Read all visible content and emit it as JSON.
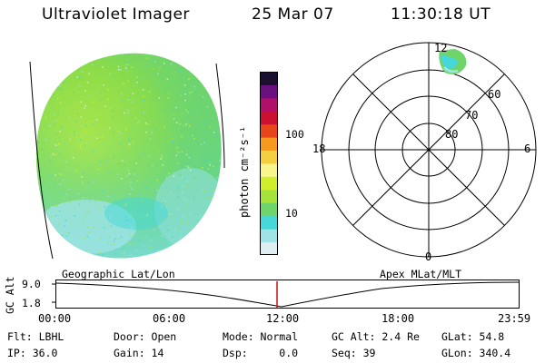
{
  "header": {
    "instrument": "Ultraviolet Imager",
    "date": "25 Mar 07",
    "time": "11:30:18 UT"
  },
  "colorbar": {
    "unit_label": "photon cm⁻²s⁻¹",
    "tick_100": "100",
    "tick_10": "10",
    "colors": [
      "#dfeef0",
      "#9fe3e6",
      "#45d7d9",
      "#6fd46a",
      "#a5e33b",
      "#d0ef2a",
      "#f7f58c",
      "#f4d040",
      "#f59a1f",
      "#e6461a",
      "#cc1030",
      "#b0106a",
      "#6a1080",
      "#1a1030"
    ]
  },
  "polar": {
    "mlt_top": "12",
    "mlt_left": "18",
    "mlt_right": "6",
    "mlt_bottom": "0",
    "lat_60": "60",
    "lat_70": "70",
    "lat_80": "80"
  },
  "timeline": {
    "left_label": "Geographic Lat/Lon",
    "right_label": "Apex MLat/MLT",
    "axis_label": "GC Alt",
    "y_max": "9.0",
    "y_min": "1.8",
    "ticks": [
      "00:00",
      "06:00",
      "12:00",
      "18:00",
      "23:59"
    ]
  },
  "status": {
    "filter": "Flt: LBHL",
    "door": "Door: Open",
    "mode": "Mode: Normal",
    "gc_alt": "GC Alt: 2.4 Re",
    "glat": "GLat:  54.8",
    "ip": "IP: 36.0",
    "gain": "Gain: 14",
    "dsp": "Dsp:     0.0",
    "seq": "Seq: 39",
    "glon": "GLon: 340.4"
  }
}
